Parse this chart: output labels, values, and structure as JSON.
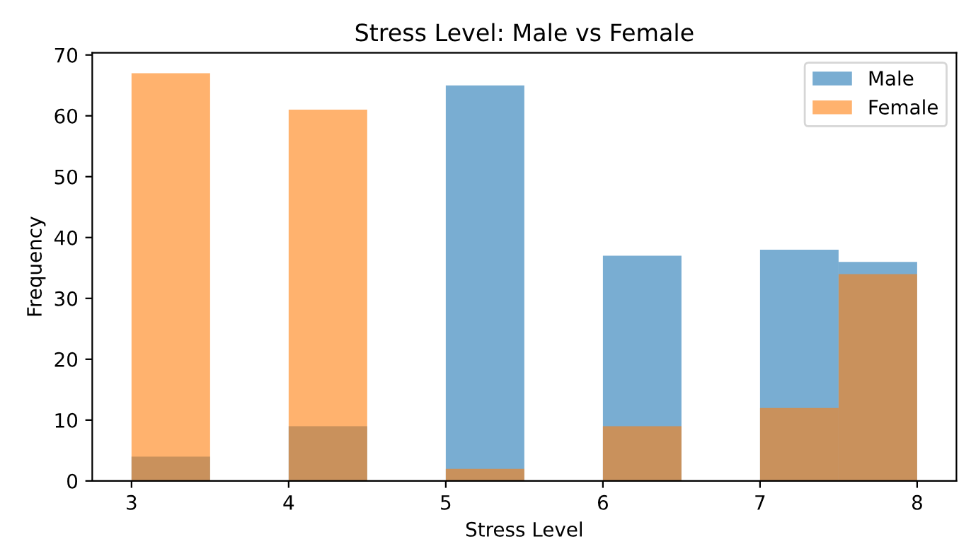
{
  "chart_data": {
    "type": "histogram",
    "title": "Stress Level: Male vs Female",
    "xlabel": "Stress Level",
    "ylabel": "Frequency",
    "bins": [
      3,
      3.5,
      4,
      4.5,
      5,
      5.5,
      6,
      6.5,
      7,
      7.5,
      8
    ],
    "series": [
      {
        "name": "Male",
        "color": "#79add2",
        "values": [
          4,
          0,
          9,
          0,
          65,
          0,
          37,
          0,
          38,
          36
        ]
      },
      {
        "name": "Female",
        "color": "#ffb26e",
        "values": [
          67,
          0,
          61,
          0,
          2,
          0,
          9,
          0,
          12,
          34
        ]
      }
    ],
    "xlim": [
      2.75,
      8.25
    ],
    "xticks": [
      3,
      4,
      5,
      6,
      7,
      8
    ],
    "ylim": [
      0,
      70.35
    ],
    "yticks": [
      0,
      10,
      20,
      30,
      40,
      50,
      60,
      70
    ],
    "legend": "top right",
    "grid": false
  }
}
